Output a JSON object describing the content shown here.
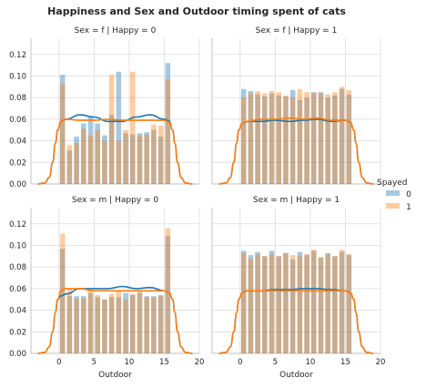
{
  "chart_data": {
    "type": "bar",
    "title": "Happiness and Sex and Outdoor timing spent of cats",
    "xlabel": "Outdoor",
    "xlim": [
      -4,
      20
    ],
    "xticks": [
      0,
      5,
      10,
      15,
      20
    ],
    "ylim": [
      0,
      0.135
    ],
    "yticks": [
      0.0,
      0.02,
      0.04,
      0.06,
      0.08,
      0.1,
      0.12
    ],
    "ytick_labels": [
      "0.00",
      "0.02",
      "0.04",
      "0.06",
      "0.08",
      "0.10",
      "0.12"
    ],
    "bin_edges": [
      0,
      1,
      2,
      3,
      4,
      5,
      6,
      7,
      8,
      9,
      10,
      11,
      12,
      13,
      14,
      15,
      16
    ],
    "legend": {
      "title": "Spayed",
      "placement": "right",
      "entries": [
        {
          "label": "0",
          "color": "#1f77b4"
        },
        {
          "label": "1",
          "color": "#ff7f0e"
        }
      ]
    },
    "panels": [
      {
        "title": "Sex = f | Happy = 0",
        "series": [
          {
            "name": "0",
            "hist": [
              0.101,
              0.031,
              0.044,
              0.056,
              0.063,
              0.056,
              0.045,
              0.064,
              0.104,
              0.047,
              0.046,
              0.047,
              0.048,
              0.05,
              0.044,
              0.112
            ],
            "kde": [
              0.06,
              0.064,
              0.062,
              0.058,
              0.058,
              0.062,
              0.064,
              0.06
            ]
          },
          {
            "name": "1",
            "hist": [
              0.093,
              0.036,
              0.038,
              0.051,
              0.045,
              0.05,
              0.04,
              0.101,
              0.04,
              0.05,
              0.104,
              0.045,
              0.046,
              0.055,
              0.054,
              0.097
            ],
            "kde": [
              0.06,
              0.059,
              0.059,
              0.06,
              0.059,
              0.059,
              0.059,
              0.059
            ]
          }
        ]
      },
      {
        "title": "Sex = f | Happy = 1",
        "series": [
          {
            "name": "0",
            "hist": [
              0.088,
              0.086,
              0.083,
              0.081,
              0.084,
              0.082,
              0.081,
              0.087,
              0.078,
              0.08,
              0.085,
              0.085,
              0.08,
              0.082,
              0.088,
              0.083
            ],
            "kde": [
              0.058,
              0.058,
              0.059,
              0.058,
              0.059,
              0.06,
              0.058,
              0.059
            ]
          },
          {
            "name": "1",
            "hist": [
              0.08,
              0.084,
              0.086,
              0.084,
              0.086,
              0.085,
              0.082,
              0.08,
              0.088,
              0.085,
              0.084,
              0.084,
              0.083,
              0.085,
              0.09,
              0.087
            ],
            "kde": [
              0.058,
              0.06,
              0.06,
              0.061,
              0.06,
              0.061,
              0.059,
              0.059
            ]
          }
        ]
      },
      {
        "title": "Sex = m | Happy = 0",
        "series": [
          {
            "name": "0",
            "hist": [
              0.097,
              0.053,
              0.053,
              0.053,
              0.056,
              0.052,
              0.05,
              0.052,
              0.052,
              0.056,
              0.054,
              0.056,
              0.053,
              0.053,
              0.054,
              0.109
            ],
            "kde": [
              0.055,
              0.06,
              0.06,
              0.06,
              0.062,
              0.06,
              0.061,
              0.058
            ]
          },
          {
            "name": "1",
            "hist": [
              0.111,
              0.06,
              0.051,
              0.051,
              0.059,
              0.054,
              0.05,
              0.055,
              0.058,
              0.05,
              0.055,
              0.058,
              0.052,
              0.052,
              0.053,
              0.116
            ],
            "kde": [
              0.06,
              0.06,
              0.058,
              0.058,
              0.058,
              0.058,
              0.058,
              0.058
            ]
          }
        ]
      },
      {
        "title": "Sex = m | Happy = 1",
        "series": [
          {
            "name": "0",
            "hist": [
              0.095,
              0.091,
              0.094,
              0.09,
              0.095,
              0.09,
              0.093,
              0.087,
              0.094,
              0.091,
              0.095,
              0.089,
              0.093,
              0.09,
              0.094,
              0.091
            ],
            "kde": [
              0.058,
              0.058,
              0.059,
              0.059,
              0.06,
              0.06,
              0.059,
              0.058
            ]
          },
          {
            "name": "1",
            "hist": [
              0.093,
              0.088,
              0.092,
              0.09,
              0.092,
              0.09,
              0.093,
              0.091,
              0.09,
              0.092,
              0.096,
              0.089,
              0.092,
              0.09,
              0.096,
              0.092
            ],
            "kde": [
              0.058,
              0.058,
              0.058,
              0.058,
              0.058,
              0.058,
              0.058,
              0.058
            ]
          }
        ]
      }
    ]
  }
}
